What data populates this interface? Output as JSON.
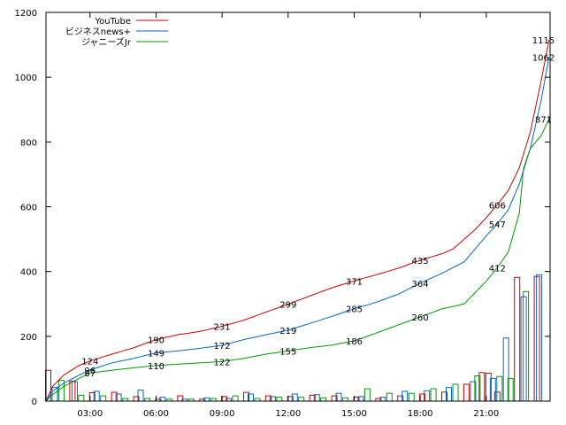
{
  "chart_data": {
    "type": "line",
    "title": "",
    "xlabel": "",
    "ylabel": "",
    "xlim": [
      1.0,
      23.9
    ],
    "ylim": [
      0,
      1200
    ],
    "grid": false,
    "legend_position": "top-left",
    "y_ticks": [
      0,
      200,
      400,
      600,
      800,
      1000,
      1200
    ],
    "x_ticks": [
      {
        "x": 3,
        "label": "03:00"
      },
      {
        "x": 6,
        "label": "06:00"
      },
      {
        "x": 9,
        "label": "09:00"
      },
      {
        "x": 12,
        "label": "12:00"
      },
      {
        "x": 15,
        "label": "15:00"
      },
      {
        "x": 18,
        "label": "18:00"
      },
      {
        "x": 21,
        "label": "21:00"
      }
    ],
    "series": [
      {
        "name": "YouTube",
        "color": "#cc0000",
        "cumulative": [
          [
            1.0,
            0
          ],
          [
            1.3,
            45
          ],
          [
            1.8,
            80
          ],
          [
            2.5,
            110
          ],
          [
            3.0,
            124
          ],
          [
            4.0,
            145
          ],
          [
            5.0,
            165
          ],
          [
            6.0,
            190
          ],
          [
            7.0,
            205
          ],
          [
            8.0,
            215
          ],
          [
            9.0,
            231
          ],
          [
            10.0,
            250
          ],
          [
            11.0,
            275
          ],
          [
            12.0,
            299
          ],
          [
            13.0,
            325
          ],
          [
            14.0,
            350
          ],
          [
            15.0,
            371
          ],
          [
            16.0,
            390
          ],
          [
            17.0,
            410
          ],
          [
            18.0,
            435
          ],
          [
            19.0,
            455
          ],
          [
            19.5,
            470
          ],
          [
            20.0,
            500
          ],
          [
            20.5,
            530
          ],
          [
            21.0,
            566
          ],
          [
            21.5,
            606
          ],
          [
            22.0,
            650
          ],
          [
            22.5,
            720
          ],
          [
            23.0,
            830
          ],
          [
            23.5,
            990
          ],
          [
            23.85,
            1115
          ]
        ],
        "point_labels": [
          [
            3.0,
            124
          ],
          [
            6.0,
            190
          ],
          [
            9.0,
            231
          ],
          [
            12.0,
            299
          ],
          [
            15.0,
            371
          ],
          [
            18.0,
            435
          ],
          [
            21.5,
            606
          ],
          [
            23.6,
            1115
          ]
        ],
        "hourly": [
          [
            1.1,
            95
          ],
          [
            2.2,
            62
          ],
          [
            3.1,
            26
          ],
          [
            4.1,
            27
          ],
          [
            5.1,
            14
          ],
          [
            6.1,
            6
          ],
          [
            7.1,
            16
          ],
          [
            8.1,
            6
          ],
          [
            9.1,
            14
          ],
          [
            10.1,
            27
          ],
          [
            11.1,
            16
          ],
          [
            12.1,
            14
          ],
          [
            13.1,
            18
          ],
          [
            14.1,
            16
          ],
          [
            15.1,
            12
          ],
          [
            16.1,
            8
          ],
          [
            17.1,
            16
          ],
          [
            18.1,
            22
          ],
          [
            19.1,
            28
          ],
          [
            20.1,
            52
          ],
          [
            20.8,
            88
          ],
          [
            21.1,
            86
          ],
          [
            21.5,
            28
          ],
          [
            22.4,
            382
          ],
          [
            23.3,
            385
          ]
        ]
      },
      {
        "name": "ビジネスnews+",
        "color": "#0066cc",
        "cumulative": [
          [
            1.0,
            0
          ],
          [
            1.3,
            30
          ],
          [
            1.8,
            55
          ],
          [
            2.5,
            80
          ],
          [
            3.0,
            96
          ],
          [
            4.0,
            118
          ],
          [
            5.0,
            132
          ],
          [
            6.0,
            149
          ],
          [
            7.0,
            155
          ],
          [
            8.0,
            163
          ],
          [
            9.0,
            172
          ],
          [
            10.0,
            190
          ],
          [
            11.0,
            205
          ],
          [
            12.0,
            219
          ],
          [
            13.0,
            240
          ],
          [
            14.0,
            262
          ],
          [
            15.0,
            285
          ],
          [
            16.0,
            305
          ],
          [
            17.0,
            330
          ],
          [
            18.0,
            364
          ],
          [
            19.0,
            395
          ],
          [
            20.0,
            430
          ],
          [
            20.5,
            470
          ],
          [
            21.0,
            510
          ],
          [
            21.5,
            547
          ],
          [
            22.0,
            590
          ],
          [
            22.5,
            670
          ],
          [
            23.0,
            780
          ],
          [
            23.5,
            930
          ],
          [
            23.85,
            1062
          ]
        ],
        "point_labels": [
          [
            3.0,
            96
          ],
          [
            6.0,
            149
          ],
          [
            9.0,
            172
          ],
          [
            12.0,
            219
          ],
          [
            15.0,
            285
          ],
          [
            18.0,
            364
          ],
          [
            21.5,
            547
          ],
          [
            23.6,
            1062
          ]
        ],
        "hourly": [
          [
            1.4,
            42
          ],
          [
            2.3,
            60
          ],
          [
            3.3,
            30
          ],
          [
            4.3,
            22
          ],
          [
            5.3,
            34
          ],
          [
            6.3,
            12
          ],
          [
            7.3,
            6
          ],
          [
            8.3,
            10
          ],
          [
            9.3,
            8
          ],
          [
            10.3,
            22
          ],
          [
            11.3,
            14
          ],
          [
            12.3,
            22
          ],
          [
            13.3,
            20
          ],
          [
            14.3,
            24
          ],
          [
            15.3,
            14
          ],
          [
            16.3,
            12
          ],
          [
            17.3,
            30
          ],
          [
            18.3,
            32
          ],
          [
            19.3,
            42
          ],
          [
            20.4,
            60
          ],
          [
            21.3,
            70
          ],
          [
            21.9,
            195
          ],
          [
            22.7,
            322
          ],
          [
            23.4,
            390
          ]
        ]
      },
      {
        "name": "ジャニーズJr",
        "color": "#009900",
        "cumulative": [
          [
            1.0,
            0
          ],
          [
            1.3,
            20
          ],
          [
            1.8,
            45
          ],
          [
            2.5,
            70
          ],
          [
            3.0,
            87
          ],
          [
            4.0,
            95
          ],
          [
            5.0,
            103
          ],
          [
            6.0,
            110
          ],
          [
            7.0,
            114
          ],
          [
            8.0,
            118
          ],
          [
            9.0,
            122
          ],
          [
            10.0,
            132
          ],
          [
            11.0,
            145
          ],
          [
            12.0,
            155
          ],
          [
            13.0,
            165
          ],
          [
            14.0,
            173
          ],
          [
            15.0,
            186
          ],
          [
            16.0,
            210
          ],
          [
            17.0,
            235
          ],
          [
            18.0,
            260
          ],
          [
            19.0,
            285
          ],
          [
            20.0,
            300
          ],
          [
            20.5,
            335
          ],
          [
            21.0,
            370
          ],
          [
            21.5,
            412
          ],
          [
            22.0,
            460
          ],
          [
            22.5,
            580
          ],
          [
            22.7,
            720
          ],
          [
            23.0,
            780
          ],
          [
            23.5,
            820
          ],
          [
            23.85,
            871
          ]
        ],
        "point_labels": [
          [
            3.0,
            87
          ],
          [
            6.0,
            110
          ],
          [
            9.0,
            122
          ],
          [
            12.0,
            155
          ],
          [
            15.0,
            186
          ],
          [
            18.0,
            260
          ],
          [
            21.5,
            412
          ],
          [
            23.6,
            871
          ]
        ],
        "hourly": [
          [
            1.7,
            64
          ],
          [
            2.6,
            18
          ],
          [
            3.6,
            16
          ],
          [
            4.6,
            8
          ],
          [
            5.6,
            8
          ],
          [
            6.6,
            6
          ],
          [
            7.6,
            6
          ],
          [
            8.6,
            8
          ],
          [
            9.6,
            16
          ],
          [
            10.6,
            8
          ],
          [
            11.6,
            12
          ],
          [
            12.6,
            12
          ],
          [
            13.6,
            10
          ],
          [
            14.6,
            10
          ],
          [
            15.6,
            38
          ],
          [
            16.6,
            24
          ],
          [
            17.6,
            24
          ],
          [
            18.6,
            38
          ],
          [
            19.6,
            52
          ],
          [
            20.6,
            78
          ],
          [
            21.6,
            76
          ],
          [
            22.1,
            70
          ],
          [
            22.8,
            338
          ]
        ]
      }
    ]
  }
}
